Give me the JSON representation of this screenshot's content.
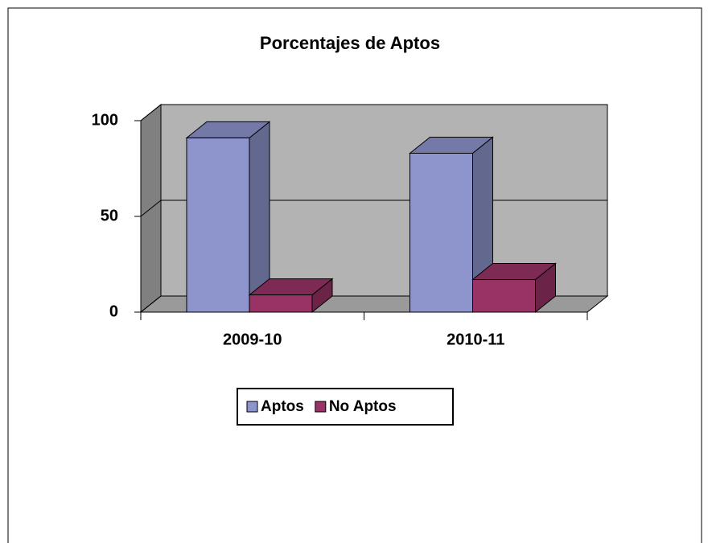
{
  "chart_data": {
    "type": "bar3d",
    "title": "Porcentajes de Aptos",
    "categories": [
      "2009-10",
      "2010-11"
    ],
    "series": [
      {
        "name": "Aptos",
        "color": "#8e94cc",
        "values": [
          91,
          83
        ]
      },
      {
        "name": "No Aptos",
        "color": "#993366",
        "values": [
          9,
          17
        ]
      }
    ],
    "ylim": [
      0,
      100
    ],
    "yticks": [
      0,
      50,
      100
    ],
    "grid": true
  }
}
